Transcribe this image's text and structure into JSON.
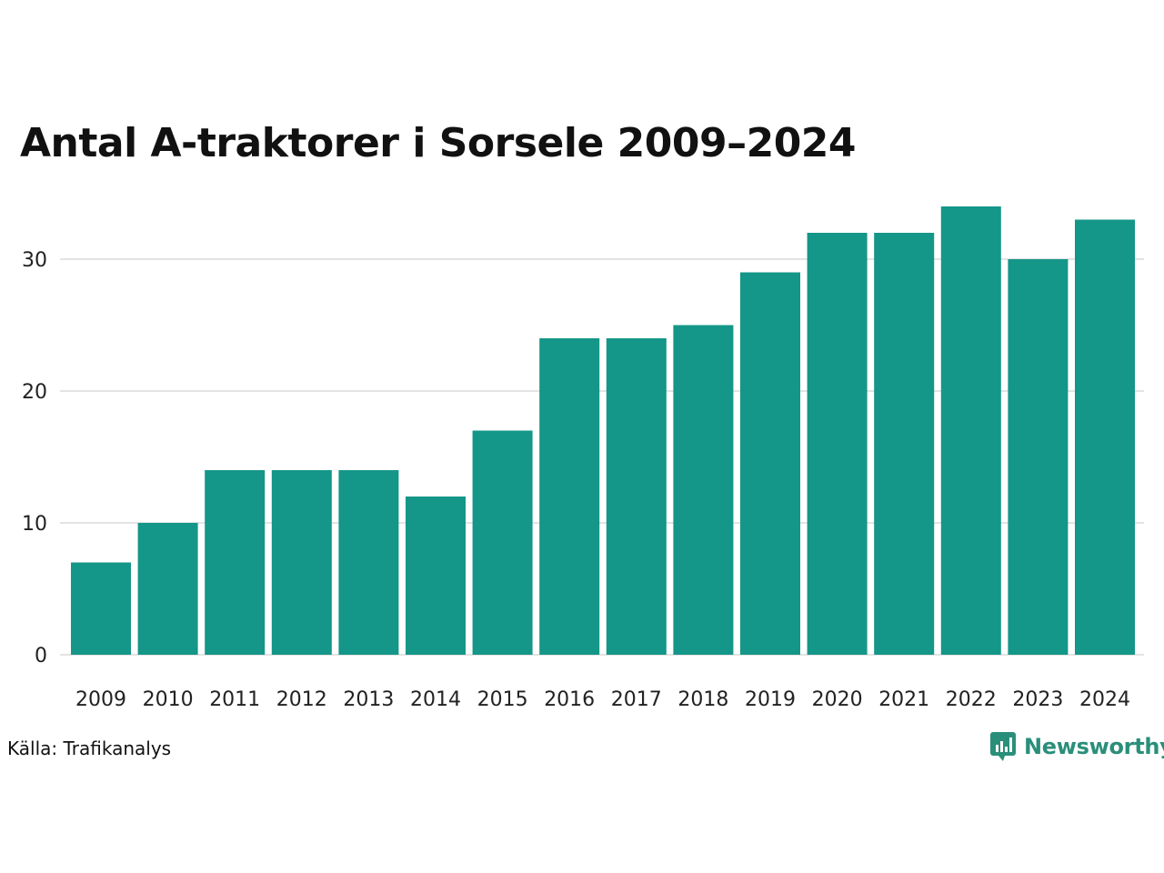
{
  "colors": {
    "bar": "#149688",
    "grid": "#e3e3e3",
    "brand": "#2a8f7a"
  },
  "footer": {
    "source": "Källa: Trafikanalys",
    "brand": "Newsworthy",
    "brand_icon": "chart-bubble-icon"
  },
  "chart_data": {
    "type": "bar",
    "title": "Antal A-traktorer i Sorsele 2009–2024",
    "xlabel": "",
    "ylabel": "",
    "categories": [
      "2009",
      "2010",
      "2011",
      "2012",
      "2013",
      "2014",
      "2015",
      "2016",
      "2017",
      "2018",
      "2019",
      "2020",
      "2021",
      "2022",
      "2023",
      "2024"
    ],
    "values": [
      7,
      10,
      14,
      14,
      14,
      12,
      17,
      24,
      24,
      25,
      29,
      32,
      32,
      34,
      30,
      33
    ],
    "ylim": [
      0,
      34
    ],
    "yticks": [
      0,
      10,
      20,
      30
    ],
    "grid": true,
    "legend": "none"
  }
}
